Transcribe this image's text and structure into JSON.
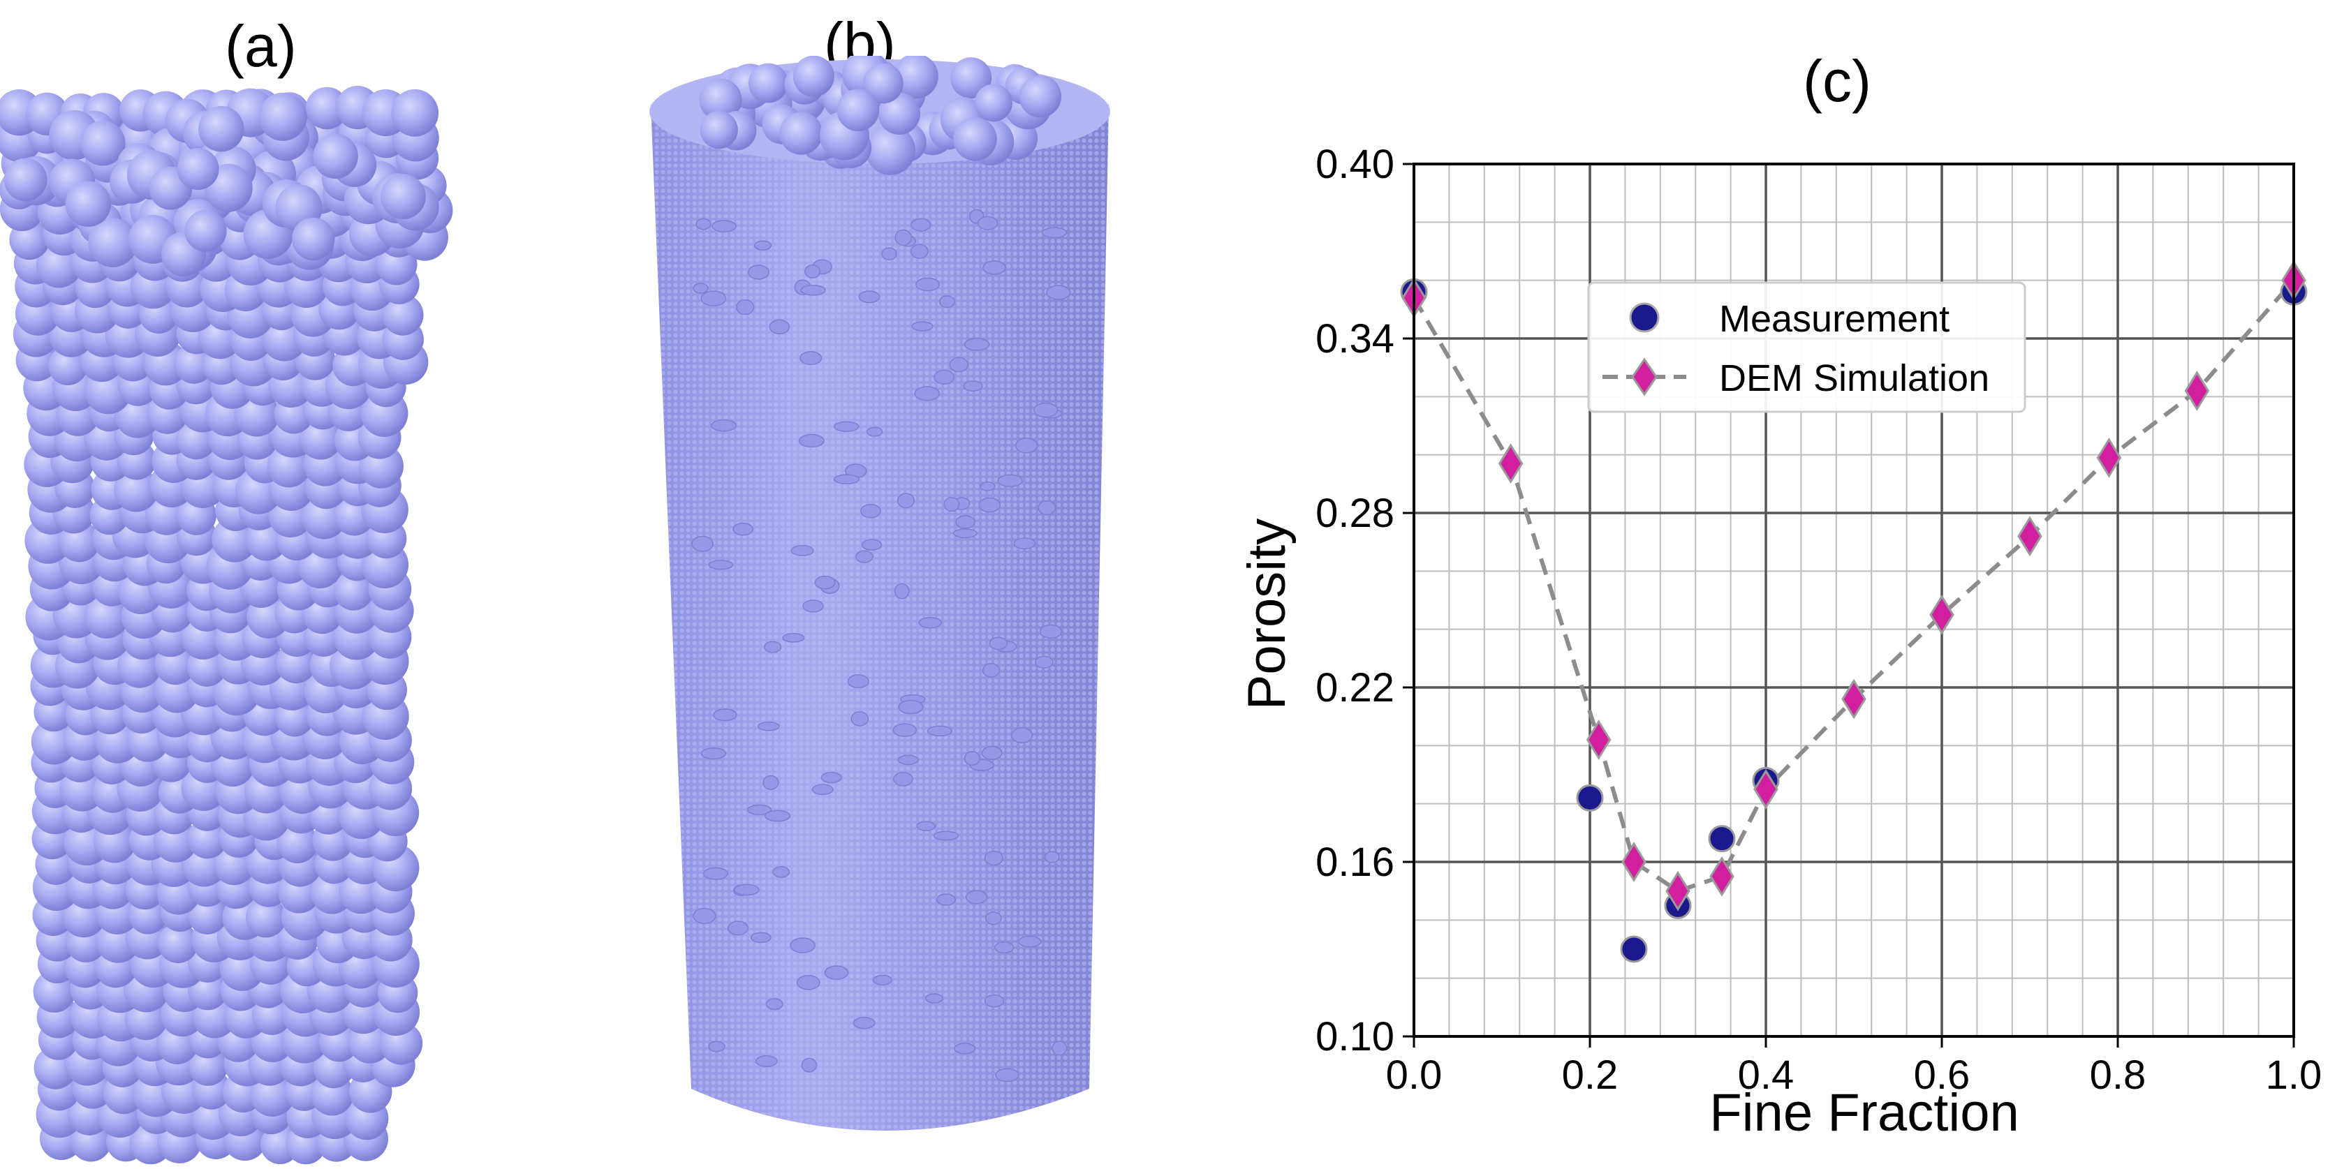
{
  "panels": {
    "a": "(a)",
    "b": "(b)",
    "c": "(c)"
  },
  "colors": {
    "sphere": "#a8aaf2",
    "sphere_shade": "#7d80d6",
    "measurement": "#1a1a8c",
    "dem": "#d11fa0",
    "dem_line": "#8c8c8c"
  },
  "chart_data": {
    "type": "scatter",
    "title": "(c)",
    "xlabel": "Fine Fraction",
    "ylabel": "Porosity",
    "xlim": [
      0.0,
      1.0
    ],
    "ylim": [
      0.1,
      0.4
    ],
    "x_ticks": [
      "0.0",
      "0.2",
      "0.4",
      "0.6",
      "0.8",
      "1.0"
    ],
    "y_ticks": [
      "0.10",
      "0.16",
      "0.22",
      "0.28",
      "0.34",
      "0.40"
    ],
    "grid": true,
    "legend": "upper-center",
    "series": [
      {
        "name": "Measurement",
        "marker": "circle",
        "x": [
          0.0,
          0.2,
          0.25,
          0.3,
          0.35,
          0.4,
          1.0
        ],
        "y": [
          0.356,
          0.182,
          0.13,
          0.145,
          0.168,
          0.188,
          0.356
        ]
      },
      {
        "name": "DEM Simulation",
        "marker": "diamond",
        "line": "dashed",
        "x": [
          0.0,
          0.11,
          0.21,
          0.25,
          0.3,
          0.35,
          0.4,
          0.5,
          0.6,
          0.7,
          0.79,
          0.89,
          1.0
        ],
        "y": [
          0.354,
          0.297,
          0.202,
          0.16,
          0.15,
          0.155,
          0.185,
          0.216,
          0.245,
          0.272,
          0.299,
          0.322,
          0.36
        ]
      }
    ]
  }
}
